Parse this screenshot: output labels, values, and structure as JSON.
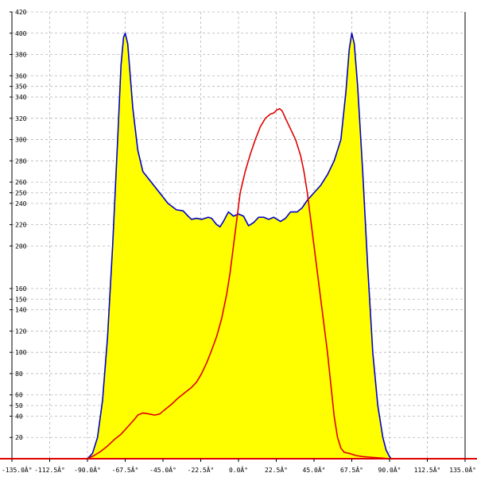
{
  "chart_data": {
    "type": "area",
    "title": "",
    "xlabel": "",
    "ylabel": "",
    "xlim": [
      -135,
      135
    ],
    "ylim": [
      0,
      420
    ],
    "grid": true,
    "x_ticks": [
      {
        "value": -135,
        "label": "-135.0Â°"
      },
      {
        "value": -112.5,
        "label": "-112.5Â°"
      },
      {
        "value": -90,
        "label": "-90.0Â°"
      },
      {
        "value": -67.5,
        "label": "-67.5Â°"
      },
      {
        "value": -45,
        "label": "-45.0Â°"
      },
      {
        "value": -22.5,
        "label": "-22.5Â°"
      },
      {
        "value": 0,
        "label": "0.0Â°"
      },
      {
        "value": 22.5,
        "label": "22.5Â°"
      },
      {
        "value": 45,
        "label": "45.0Â°"
      },
      {
        "value": 67.5,
        "label": "67.5Â°"
      },
      {
        "value": 90,
        "label": "90.0Â°"
      },
      {
        "value": 112.5,
        "label": "112.5Â°"
      },
      {
        "value": 135,
        "label": "135.0Â°"
      }
    ],
    "y_ticks": [
      {
        "value": 20,
        "label": "20"
      },
      {
        "value": 40,
        "label": "40"
      },
      {
        "value": 50,
        "label": "50"
      },
      {
        "value": 60,
        "label": "60"
      },
      {
        "value": 80,
        "label": "80"
      },
      {
        "value": 100,
        "label": "100"
      },
      {
        "value": 120,
        "label": "120"
      },
      {
        "value": 140,
        "label": "140"
      },
      {
        "value": 150,
        "label": "150"
      },
      {
        "value": 160,
        "label": "160"
      },
      {
        "value": 200,
        "label": "200"
      },
      {
        "value": 220,
        "label": "220"
      },
      {
        "value": 240,
        "label": "240"
      },
      {
        "value": 250,
        "label": "250"
      },
      {
        "value": 260,
        "label": "260"
      },
      {
        "value": 280,
        "label": "280"
      },
      {
        "value": 300,
        "label": "300"
      },
      {
        "value": 320,
        "label": "320"
      },
      {
        "value": 340,
        "label": "340"
      },
      {
        "value": 350,
        "label": "350"
      },
      {
        "value": 360,
        "label": "360"
      },
      {
        "value": 380,
        "label": "380"
      },
      {
        "value": 400,
        "label": "400"
      },
      {
        "value": 420,
        "label": "420"
      }
    ],
    "series": [
      {
        "color": "#0000c8",
        "fill": "#ffff00",
        "points": [
          [
            -90,
            0
          ],
          [
            -87,
            5
          ],
          [
            -84,
            20
          ],
          [
            -81,
            55
          ],
          [
            -78,
            115
          ],
          [
            -75,
            200
          ],
          [
            -72,
            300
          ],
          [
            -70,
            370
          ],
          [
            -68.5,
            396
          ],
          [
            -67.5,
            400
          ],
          [
            -66,
            390
          ],
          [
            -63,
            330
          ],
          [
            -60,
            290
          ],
          [
            -57,
            270
          ],
          [
            -52,
            260
          ],
          [
            -47,
            250
          ],
          [
            -42,
            240
          ],
          [
            -37,
            234
          ],
          [
            -33,
            233
          ],
          [
            -30,
            228
          ],
          [
            -28,
            225
          ],
          [
            -25,
            226
          ],
          [
            -22,
            225
          ],
          [
            -18,
            227
          ],
          [
            -16,
            226
          ],
          [
            -13,
            220
          ],
          [
            -11,
            218
          ],
          [
            -9,
            223
          ],
          [
            -6,
            232
          ],
          [
            -3,
            228
          ],
          [
            0,
            230
          ],
          [
            3,
            228
          ],
          [
            6,
            219
          ],
          [
            9,
            222
          ],
          [
            12,
            227
          ],
          [
            15,
            227
          ],
          [
            18,
            225
          ],
          [
            21,
            227
          ],
          [
            25,
            223
          ],
          [
            28,
            226
          ],
          [
            31,
            232
          ],
          [
            35,
            232
          ],
          [
            38,
            236
          ],
          [
            41,
            243
          ],
          [
            45,
            250
          ],
          [
            49,
            257
          ],
          [
            53,
            267
          ],
          [
            57,
            280
          ],
          [
            61,
            300
          ],
          [
            64,
            345
          ],
          [
            66,
            385
          ],
          [
            67.5,
            400
          ],
          [
            69,
            390
          ],
          [
            71,
            350
          ],
          [
            74,
            270
          ],
          [
            77,
            180
          ],
          [
            80,
            100
          ],
          [
            83,
            50
          ],
          [
            86,
            20
          ],
          [
            88,
            8
          ],
          [
            90,
            2
          ],
          [
            91,
            0
          ]
        ]
      },
      {
        "color": "#e00000",
        "fill": "none",
        "points": [
          [
            -90,
            0
          ],
          [
            -86,
            3
          ],
          [
            -82,
            7
          ],
          [
            -78,
            12
          ],
          [
            -74,
            18
          ],
          [
            -70,
            23
          ],
          [
            -66,
            30
          ],
          [
            -62,
            37
          ],
          [
            -60,
            41
          ],
          [
            -57,
            43
          ],
          [
            -53,
            42
          ],
          [
            -50,
            41
          ],
          [
            -47,
            42
          ],
          [
            -44,
            46
          ],
          [
            -40,
            51
          ],
          [
            -36,
            57
          ],
          [
            -32,
            62
          ],
          [
            -28,
            67
          ],
          [
            -25,
            72
          ],
          [
            -22,
            80
          ],
          [
            -19,
            90
          ],
          [
            -16,
            102
          ],
          [
            -13,
            115
          ],
          [
            -10,
            132
          ],
          [
            -7,
            155
          ],
          [
            -5,
            175
          ],
          [
            -3,
            200
          ],
          [
            -1,
            225
          ],
          [
            1,
            250
          ],
          [
            4,
            270
          ],
          [
            7,
            286
          ],
          [
            10,
            300
          ],
          [
            13,
            312
          ],
          [
            16,
            320
          ],
          [
            19,
            324
          ],
          [
            21,
            325
          ],
          [
            23,
            328
          ],
          [
            24.5,
            329
          ],
          [
            26,
            327
          ],
          [
            28,
            320
          ],
          [
            31,
            310
          ],
          [
            34,
            300
          ],
          [
            37,
            285
          ],
          [
            39,
            270
          ],
          [
            41,
            250
          ],
          [
            43,
            225
          ],
          [
            45,
            200
          ],
          [
            47,
            175
          ],
          [
            49,
            150
          ],
          [
            51,
            125
          ],
          [
            53,
            100
          ],
          [
            55,
            70
          ],
          [
            57,
            40
          ],
          [
            59,
            20
          ],
          [
            61,
            10
          ],
          [
            63,
            6
          ],
          [
            66,
            5
          ],
          [
            70,
            3
          ],
          [
            74,
            2
          ],
          [
            78,
            1.5
          ],
          [
            82,
            1
          ],
          [
            86,
            0.5
          ],
          [
            90,
            0
          ]
        ]
      }
    ],
    "baseline_color": "#e00000",
    "colors": {
      "grid": "#b5b5b5",
      "axis": "#000000",
      "area_fill": "#ffff00"
    }
  }
}
